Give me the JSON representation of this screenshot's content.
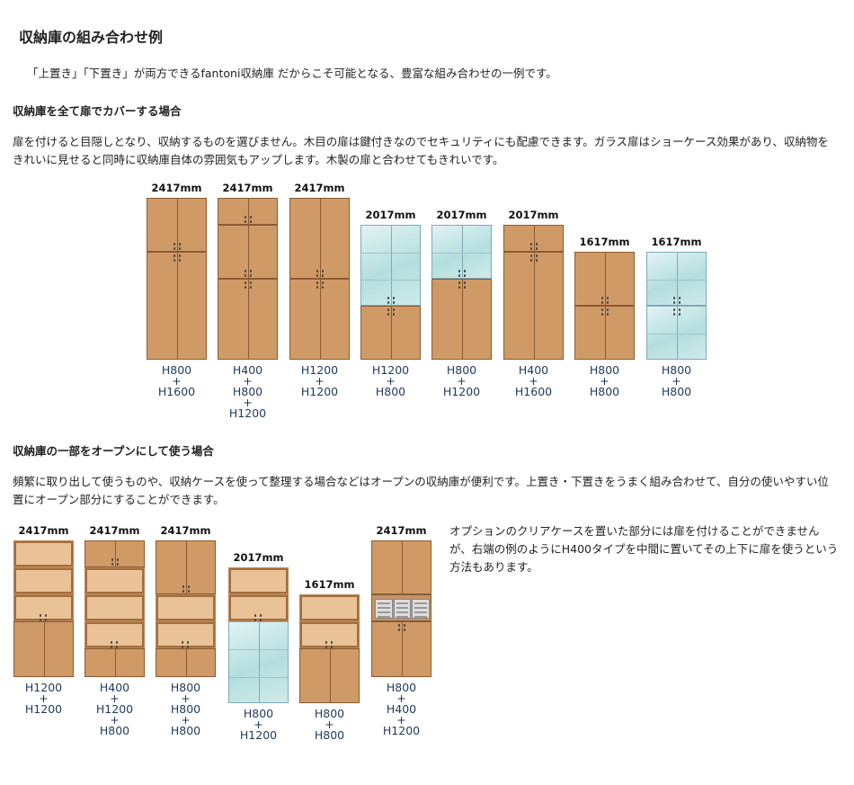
{
  "title": "収納庫の組み合わせ例",
  "lead": "「上置き」「下置き」が両方できるfantoni収納庫 だからこそ可能となる、豊富な組み合わせの一例です。",
  "section1": {
    "heading": "収納庫を全て扉でカバーする場合",
    "body": "扉を付けると目隠しとなり、収納するものを選びません。木目の扉は鍵付きなのでセキュリティにも配慮できます。ガラス扉はショーケース効果があり、収納物をきれいに見せると同時に収納庫自体の雰囲気もアップします。木製の扉と合わせてもきれいです。",
    "units": [
      {
        "height": "2417mm",
        "caption": "H800\n+\nH1600"
      },
      {
        "height": "2417mm",
        "caption": "H400\n+\nH800\n+\nH1200"
      },
      {
        "height": "2417mm",
        "caption": "H1200\n+\nH1200"
      },
      {
        "height": "2017mm",
        "caption": "H1200\n+\nH800"
      },
      {
        "height": "2017mm",
        "caption": "H800\n+\nH1200"
      },
      {
        "height": "2017mm",
        "caption": "H400\n+\nH1600"
      },
      {
        "height": "1617mm",
        "caption": "H800\n+\nH800"
      },
      {
        "height": "1617mm",
        "caption": "H800\n+\nH800"
      }
    ]
  },
  "section2": {
    "heading": "収納庫の一部をオープンにして使う場合",
    "body": "頻繁に取り出して使うものや、収納ケースを使って整理する場合などはオープンの収納庫が便利です。上置き・下置きをうまく組み合わせて、自分の使いやすい位置にオープン部分にすることができます。",
    "note": "オプションのクリアケースを置いた部分には扉を付けることができませんが、右端の例のようにH400タイプを中間に置いてその上下に扉を使うという方法もあります。",
    "units": [
      {
        "height": "2417mm",
        "caption": "H1200\n+\nH1200"
      },
      {
        "height": "2417mm",
        "caption": "H400\n+\nH1200\n+\nH800"
      },
      {
        "height": "2417mm",
        "caption": "H800\n+\nH800\n+\nH800"
      },
      {
        "height": "2017mm",
        "caption": "H800\n+\nH1200"
      },
      {
        "height": "1617mm",
        "caption": "H800\n+\nH800"
      },
      {
        "height": "2417mm",
        "caption": "H800\n+\nH400\n+\nH1200"
      }
    ]
  },
  "colors": {
    "wood": "#d09a66",
    "wood_edge": "#8a5a33",
    "glass": "#b4dede",
    "open_shelf": "#e9c397",
    "caption_text": "#1f3a5c"
  }
}
